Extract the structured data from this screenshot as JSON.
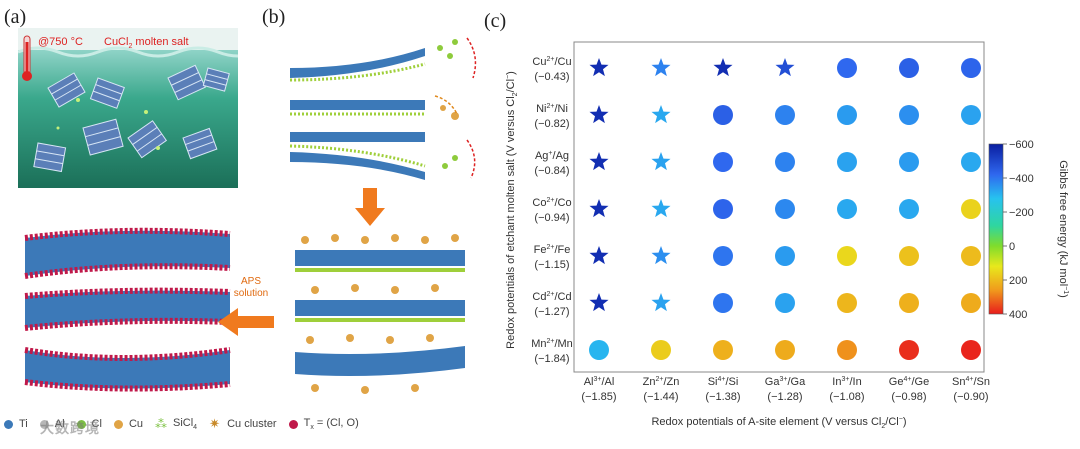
{
  "figure": {
    "panel_a": {
      "label": "(a)",
      "temperature": "@750 °C",
      "salt_label_prefix": "CuCl",
      "salt_label_sub": "2",
      "salt_label_suffix": " molten salt"
    },
    "panel_b": {
      "label": "(b)",
      "aps_line1": "APS",
      "aps_line2": "solution"
    },
    "panel_c": {
      "label": "(c)"
    },
    "legend": {
      "ti": "Ti",
      "al": "Al",
      "cl": "Cl",
      "cu": "Cu",
      "sicl4": "SiCl",
      "sicl4_sub": "4",
      "cu_cluster": "Cu cluster",
      "tx_prefix": "T",
      "tx_sub": "x",
      "tx_suffix": " = (Cl, O)"
    },
    "watermark": "大数跨境",
    "colors": {
      "background_water": "#1f8a6a",
      "arrow": "#f07a1e",
      "star": "#1f3fc0"
    }
  },
  "chart_data": {
    "type": "heatmap",
    "marker_note": "stars and circles",
    "y_categories": [
      {
        "ion": "Cu",
        "charge": "2+",
        "metal": "Cu",
        "potential": "(−0.43)"
      },
      {
        "ion": "Ni",
        "charge": "2+",
        "metal": "Ni",
        "potential": "(−0.82)"
      },
      {
        "ion": "Ag",
        "charge": "+",
        "metal": "Ag",
        "potential": "(−0.84)"
      },
      {
        "ion": "Co",
        "charge": "2+",
        "metal": "Co",
        "potential": "(−0.94)"
      },
      {
        "ion": "Fe",
        "charge": "2+",
        "metal": "Fe",
        "potential": "(−1.15)"
      },
      {
        "ion": "Cd",
        "charge": "2+",
        "metal": "Cd",
        "potential": "(−1.27)"
      },
      {
        "ion": "Mn",
        "charge": "2+",
        "metal": "Mn",
        "potential": "(−1.84)"
      }
    ],
    "x_categories": [
      {
        "ion": "Al",
        "charge": "3+",
        "metal": "Al",
        "potential": "(−1.85)"
      },
      {
        "ion": "Zn",
        "charge": "2+",
        "metal": "Zn",
        "potential": "(−1.44)"
      },
      {
        "ion": "Si",
        "charge": "4+",
        "metal": "Si",
        "potential": "(−1.38)"
      },
      {
        "ion": "Ga",
        "charge": "3+",
        "metal": "Ga",
        "potential": "(−1.28)"
      },
      {
        "ion": "In",
        "charge": "3+",
        "metal": "In",
        "potential": "(−1.08)"
      },
      {
        "ion": "Ge",
        "charge": "4+",
        "metal": "Ge",
        "potential": "(−0.98)"
      },
      {
        "ion": "Sn",
        "charge": "4+",
        "metal": "Sn",
        "potential": "(−0.90)"
      }
    ],
    "values": [
      [
        -560,
        -380,
        -560,
        -480,
        -420,
        -440,
        -430
      ],
      [
        -560,
        -320,
        -440,
        -380,
        -340,
        -360,
        -330
      ],
      [
        -560,
        -330,
        -420,
        -380,
        -330,
        -340,
        -320
      ],
      [
        -560,
        -320,
        -430,
        -370,
        -320,
        -320,
        160
      ],
      [
        -560,
        -360,
        -400,
        -340,
        150,
        190,
        200
      ],
      [
        -560,
        -330,
        -400,
        -330,
        210,
        220,
        230
      ],
      [
        -300,
        170,
        220,
        230,
        270,
        380,
        390
      ]
    ],
    "markers": [
      [
        "star",
        "star",
        "star",
        "star",
        "circle",
        "circle",
        "circle"
      ],
      [
        "star",
        "star",
        "circle",
        "circle",
        "circle",
        "circle",
        "circle"
      ],
      [
        "star",
        "star",
        "circle",
        "circle",
        "circle",
        "circle",
        "circle"
      ],
      [
        "star",
        "star",
        "circle",
        "circle",
        "circle",
        "circle",
        "circle"
      ],
      [
        "star",
        "star",
        "circle",
        "circle",
        "circle",
        "circle",
        "circle"
      ],
      [
        "star",
        "star",
        "circle",
        "circle",
        "circle",
        "circle",
        "circle"
      ],
      [
        "circle",
        "circle",
        "circle",
        "circle",
        "circle",
        "circle",
        "circle"
      ]
    ],
    "xlabel_prefix": "Redox potentials of A-site element (V versus Cl",
    "xlabel_sub": "2",
    "xlabel_mid": "/Cl",
    "xlabel_sup": "−",
    "xlabel_suffix": ")",
    "ylabel_prefix": "Redox potentials of etchant molten salt (V versus Cl",
    "ylabel_sub": "2",
    "ylabel_mid": "/Cl",
    "ylabel_sup": "−",
    "ylabel_suffix": ")",
    "colorbar": {
      "title_prefix": "Gibbs free energy (kJ mol",
      "title_sup": "−1",
      "title_suffix": ")",
      "range": [
        400,
        -600
      ],
      "ticks": [
        "−600",
        "−400",
        "−200",
        "0",
        "200",
        "400"
      ]
    }
  }
}
